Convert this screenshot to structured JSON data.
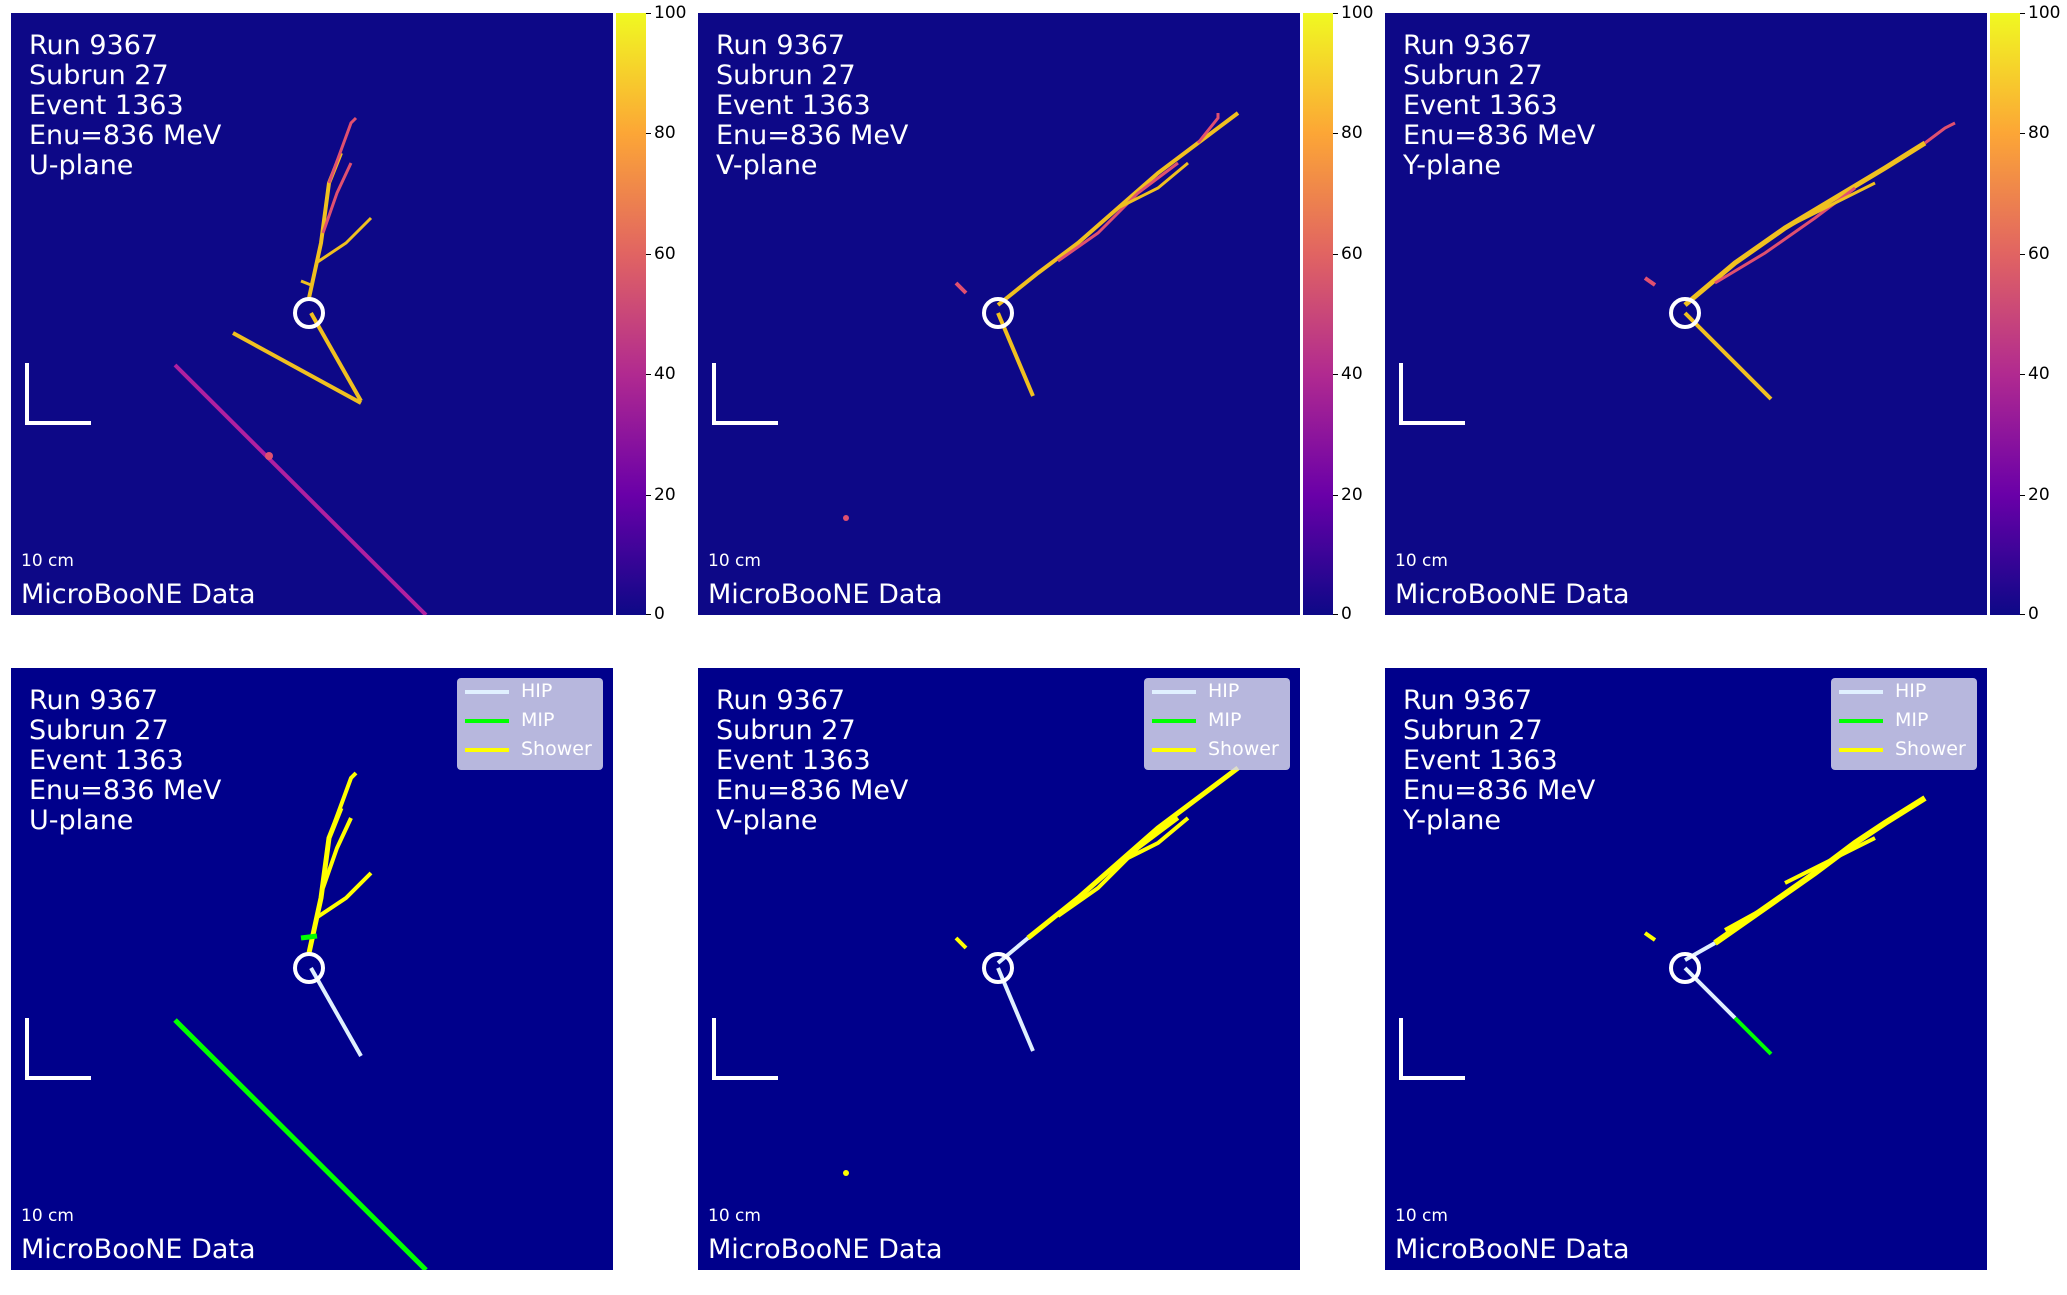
{
  "colors": {
    "panel_bg_top": "#0d0887",
    "panel_bg_bottom": "#00008b",
    "hip": "#e0f0ff",
    "mip": "#00ff00",
    "shower": "#ffff00",
    "track_hot": "#f0c020",
    "track_warm": "#e05070",
    "track_cool": "#b020a0"
  },
  "event": {
    "run": "Run 9367",
    "subrun": "Subrun 27",
    "event": "Event 1363",
    "enu": "Enu=836 MeV"
  },
  "planes": [
    "U-plane",
    "V-plane",
    "Y-plane"
  ],
  "scale_bar": "10 cm",
  "data_label": "MicroBooNE Data",
  "colorbar": {
    "ticks": [
      "100",
      "80",
      "60",
      "40",
      "20",
      "0"
    ]
  },
  "legend": [
    {
      "label": "HIP",
      "color": "#e0f0ff"
    },
    {
      "label": "MIP",
      "color": "#00ff00"
    },
    {
      "label": "Shower",
      "color": "#ffff00"
    }
  ]
}
